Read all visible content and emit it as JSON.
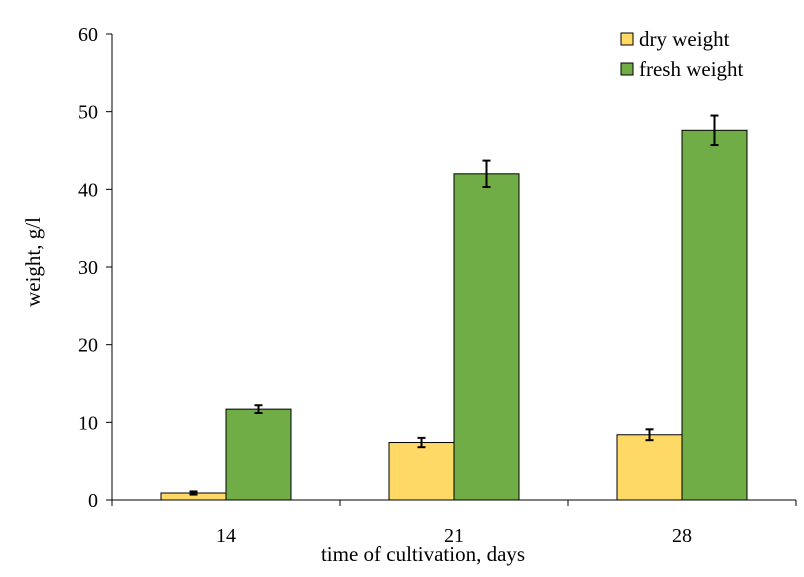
{
  "chart_data": {
    "type": "bar",
    "categories": [
      "14",
      "21",
      "28"
    ],
    "series": [
      {
        "name": "dry weight",
        "color": "#FFD966",
        "values": [
          0.9,
          7.4,
          8.4
        ],
        "errors": [
          0.2,
          0.6,
          0.7
        ]
      },
      {
        "name": "fresh weight",
        "color": "#70AD47",
        "values": [
          11.7,
          42.0,
          47.6
        ],
        "errors": [
          0.5,
          1.7,
          1.9
        ]
      }
    ],
    "xlabel": "time of cultivation, days",
    "ylabel": "weight, g/l",
    "ylim": [
      0,
      60
    ],
    "yticks": [
      0,
      10,
      20,
      30,
      40,
      50,
      60
    ],
    "grid": false,
    "legend_position": "top-right"
  }
}
